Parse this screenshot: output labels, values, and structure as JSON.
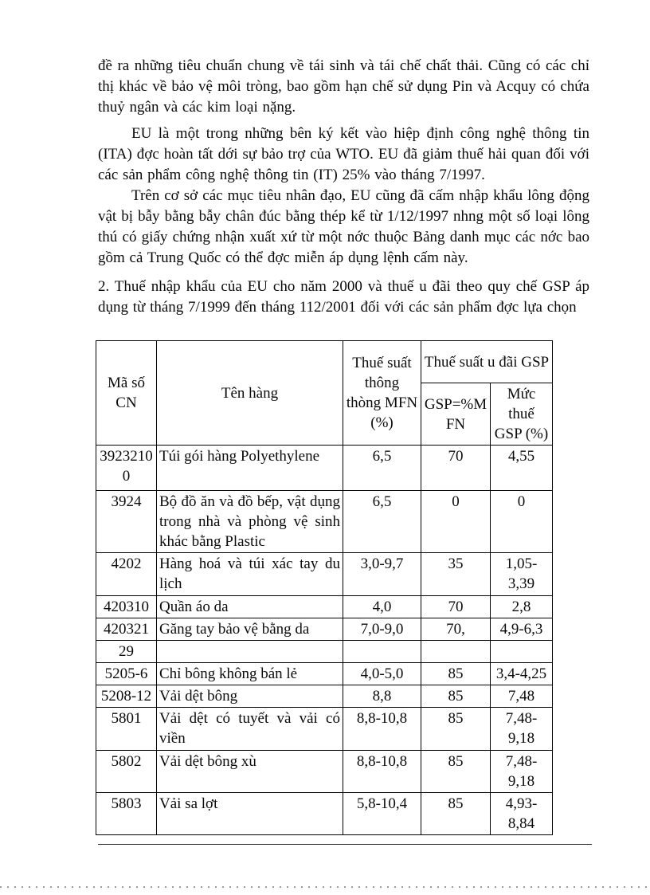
{
  "document": {
    "paragraphs": {
      "p1": "đề ra những tiêu chuẩn chung về tái sinh và tái chế chất thải. Cũng có các chỉ thị khác về bảo vệ môi tròng,  bao gồm hạn chế sử dụng Pin và Acquy có chứa thuỷ ngân và các kim loại nặng.",
      "p2": "EU là một trong những bên ký kết vào hiệp định công nghệ thông tin (ITA) đợc  hoàn tất dới  sự bảo trợ của WTO. EU đã giảm thuế hải quan đối với các sản phẩm công nghệ thông tin (IT) 25% vào tháng 7/1997.",
      "p3": "Trên cơ sở các mục tiêu nhân đạo, EU cũng đã cấm nhập khẩu lông động vật bị bẫy bằng bẫy chân đúc bằng thép kể từ 1/12/1997 nhng  một số loại lông thú có giấy chứng nhận xuất xứ từ một nớc  thuộc Bảng danh mục các nớc  bao gồm cả Trung Quốc có thể đợc  miễn áp dụng lệnh cấm này.",
      "p4": "2. Thuế nhập khẩu của EU cho năm 2000 và thuế u  đãi theo quy chế GSP áp dụng từ tháng 7/1999 đến tháng 112/2001 đối với các sản phẩm đợc  lựa chọn"
    },
    "table": {
      "header": {
        "col_code": "Mã số CN",
        "col_name": "Tên hàng",
        "col_mfn": "Thuế suất thông thòng MFN (%)",
        "col_gsp_group": "Thuế suất u đãi GSP",
        "col_gsp_pct": "GSP=%MFN",
        "col_gsp_rate": "Mức thuế GSP (%)"
      },
      "rows": [
        {
          "code": "39232100",
          "name": "Túi gói hàng Polyethylene",
          "mfn": "6,5",
          "gsp": "70",
          "rate": "4,55"
        },
        {
          "code": "3924",
          "name": "Bộ đồ ăn và đồ bếp, vật dụng trong nhà và phòng vệ sinh khác bằng Plastic",
          "mfn": "6,5",
          "gsp": "0",
          "rate": "0"
        },
        {
          "code": "4202",
          "name": "Hàng hoá và túi xác tay du lịch",
          "mfn": "3,0-9,7",
          "gsp": "35",
          "rate": "1,05-3,39"
        },
        {
          "code": "420310",
          "name": "Quần áo da",
          "mfn": "4,0",
          "gsp": "70",
          "rate": "2,8"
        },
        {
          "code": "420321",
          "name": "Găng tay bảo vệ bằng da",
          "mfn": "7,0-9,0",
          "gsp": "70,",
          "rate": "4,9-6,3"
        },
        {
          "code": "29",
          "name": "",
          "mfn": "",
          "gsp": "",
          "rate": ""
        },
        {
          "code": "5205-6",
          "name": "Chỉ bông không bán lẻ",
          "mfn": "4,0-5,0",
          "gsp": "85",
          "rate": "3,4-4,25"
        },
        {
          "code": "5208-12",
          "name": "Vải dệt bông",
          "mfn": "8,8",
          "gsp": "85",
          "rate": "7,48"
        },
        {
          "code": "5801",
          "name": "Vải dệt có tuyết và vải có viền",
          "mfn": "8,8-10,8",
          "gsp": "85",
          "rate": "7,48-9,18"
        },
        {
          "code": "5802",
          "name": "Vải dệt bông xù",
          "mfn": "8,8-10,8",
          "gsp": "85",
          "rate": "7,48-9,18"
        },
        {
          "code": "5803",
          "name": "Vải sa lợt",
          "mfn": "5,8-10,4",
          "gsp": "85",
          "rate": "4,93-8,84"
        }
      ]
    }
  }
}
